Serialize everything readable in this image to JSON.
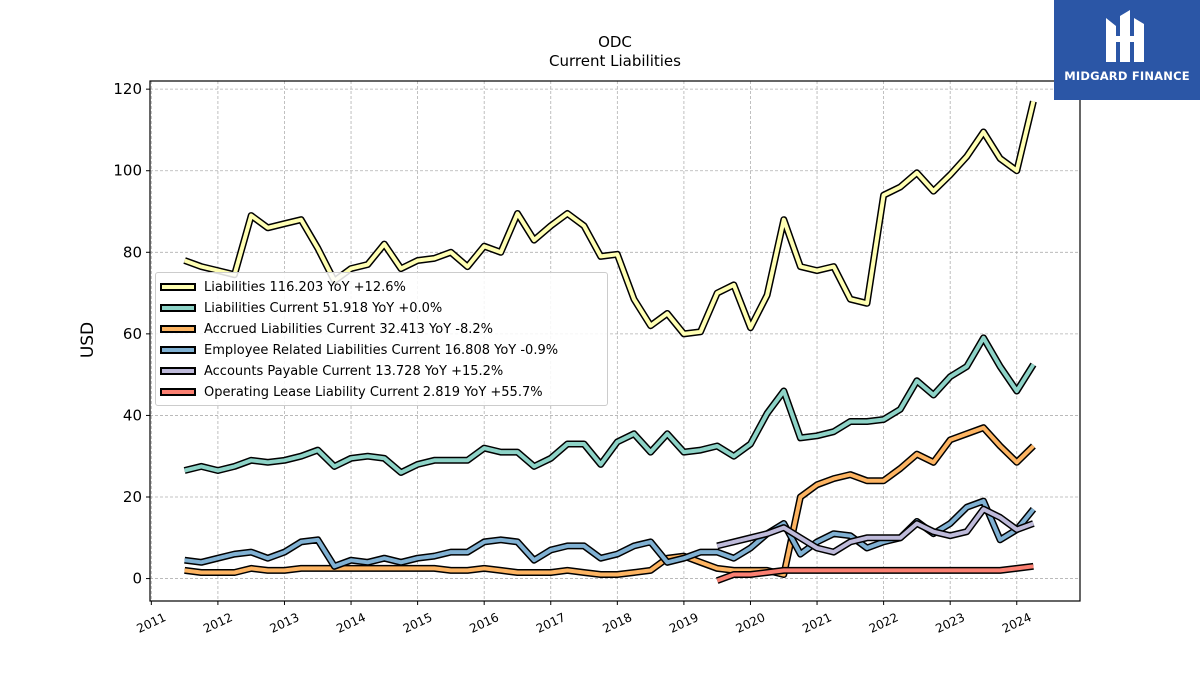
{
  "logo": {
    "text": "MIDGARD FINANCE"
  },
  "chart_data": {
    "type": "line",
    "title": "ODC",
    "subtitle": "Current  Liabilities",
    "ylabel": "USD",
    "xlim": [
      2010.98,
      2024.95
    ],
    "ylim": [
      -5.5,
      122
    ],
    "yticks": [
      0,
      20,
      40,
      60,
      80,
      100,
      120
    ],
    "xticks": [
      "2011",
      "2012",
      "2013",
      "2014",
      "2015",
      "2016",
      "2017",
      "2018",
      "2019",
      "2020",
      "2021",
      "2022",
      "2023",
      "2024"
    ],
    "grid": true,
    "legend_position": "center-left",
    "series": [
      {
        "name": "Liabilities",
        "legend": "Liabilities  116.203 YoY +12.6%",
        "color": "#ffffb3",
        "x": [
          2011.5,
          2011.75,
          2012.0,
          2012.25,
          2012.5,
          2012.75,
          2013.0,
          2013.25,
          2013.5,
          2013.75,
          2014.0,
          2014.25,
          2014.5,
          2014.75,
          2015.0,
          2015.25,
          2015.5,
          2015.75,
          2016.0,
          2016.25,
          2016.5,
          2016.75,
          2017.0,
          2017.25,
          2017.5,
          2017.75,
          2018.0,
          2018.25,
          2018.5,
          2018.75,
          2019.0,
          2019.25,
          2019.5,
          2019.75,
          2020.0,
          2020.25,
          2020.5,
          2020.75,
          2021.0,
          2021.25,
          2021.5,
          2021.75,
          2022.0,
          2022.25,
          2022.5,
          2022.75,
          2023.0,
          2023.25,
          2023.5,
          2023.75,
          2024.0,
          2024.25
        ],
        "y": [
          78,
          76.5,
          75.5,
          74.5,
          89,
          86,
          87,
          88,
          81,
          73,
          76,
          77,
          82,
          76,
          78,
          78.5,
          80,
          76.5,
          81.5,
          80,
          89.5,
          83,
          86.5,
          89.5,
          86.5,
          79,
          79.5,
          68.5,
          62,
          65,
          60,
          60.5,
          70,
          72,
          61.5,
          69.5,
          88,
          76.5,
          75.5,
          76.5,
          68.5,
          67.5,
          94,
          96,
          99.5,
          95,
          99,
          103.5,
          109.5,
          103,
          100,
          117
        ]
      },
      {
        "name": "Liabilities Current",
        "legend": "Liabilities Current  51.918 YoY +0.0%",
        "color": "#8dd3c7",
        "x": [
          2011.5,
          2011.75,
          2012.0,
          2012.25,
          2012.5,
          2012.75,
          2013.0,
          2013.25,
          2013.5,
          2013.75,
          2014.0,
          2014.25,
          2014.5,
          2014.75,
          2015.0,
          2015.25,
          2015.5,
          2015.75,
          2016.0,
          2016.25,
          2016.5,
          2016.75,
          2017.0,
          2017.25,
          2017.5,
          2017.75,
          2018.0,
          2018.25,
          2018.5,
          2018.75,
          2019.0,
          2019.25,
          2019.5,
          2019.75,
          2020.0,
          2020.25,
          2020.5,
          2020.75,
          2021.0,
          2021.25,
          2021.5,
          2021.75,
          2022.0,
          2022.25,
          2022.5,
          2022.75,
          2023.0,
          2023.25,
          2023.5,
          2023.75,
          2024.0,
          2024.25
        ],
        "y": [
          26.5,
          27.5,
          26.5,
          27.5,
          29,
          28.5,
          29,
          30,
          31.5,
          27.5,
          29.5,
          30,
          29.5,
          26,
          28,
          29,
          29,
          29,
          32,
          31,
          31,
          27.5,
          29.5,
          33,
          33,
          28,
          33.5,
          35.5,
          31,
          35.5,
          31,
          31.5,
          32.5,
          30,
          33,
          40.5,
          46,
          34.5,
          35,
          36,
          38.5,
          38.5,
          39,
          41.5,
          48.5,
          45,
          49.5,
          52,
          59,
          52,
          46,
          52.5
        ]
      },
      {
        "name": "Accrued Liabilities Current",
        "legend": "Accrued Liabilities Current  32.413 YoY -8.2%",
        "color": "#fdb462",
        "x": [
          2011.5,
          2011.75,
          2012.0,
          2012.25,
          2012.5,
          2012.75,
          2013.0,
          2013.25,
          2013.5,
          2013.75,
          2014.0,
          2014.25,
          2014.5,
          2014.75,
          2015.0,
          2015.25,
          2015.5,
          2015.75,
          2016.0,
          2016.25,
          2016.5,
          2016.75,
          2017.0,
          2017.25,
          2017.5,
          2017.75,
          2018.0,
          2018.25,
          2018.5,
          2018.75,
          2019.0,
          2019.25,
          2019.5,
          2019.75,
          2020.0,
          2020.25,
          2020.5,
          2020.75,
          2021.0,
          2021.25,
          2021.5,
          2021.75,
          2022.0,
          2022.25,
          2022.5,
          2022.75,
          2023.0,
          2023.25,
          2023.5,
          2023.75,
          2024.0,
          2024.25
        ],
        "y": [
          2,
          1.5,
          1.5,
          1.5,
          2.5,
          2,
          2,
          2.5,
          2.5,
          2.5,
          2.5,
          2.5,
          2.5,
          2.5,
          2.5,
          2.5,
          2,
          2,
          2.5,
          2,
          1.5,
          1.5,
          1.5,
          2,
          1.5,
          1,
          1,
          1.5,
          2,
          5,
          5.5,
          4,
          2.5,
          2,
          2,
          2,
          1,
          20,
          23,
          24.5,
          25.5,
          24,
          24,
          27,
          30.5,
          28.5,
          34,
          35.5,
          37,
          32.5,
          28.5,
          32.5
        ]
      },
      {
        "name": "Employee Related Liabilities Current",
        "legend": "Employee Related Liabilities Current  16.808 YoY -0.9%",
        "color": "#80b1d3",
        "x": [
          2011.5,
          2011.75,
          2012.0,
          2012.25,
          2012.5,
          2012.75,
          2013.0,
          2013.25,
          2013.5,
          2013.75,
          2014.0,
          2014.25,
          2014.5,
          2014.75,
          2015.0,
          2015.25,
          2015.5,
          2015.75,
          2016.0,
          2016.25,
          2016.5,
          2016.75,
          2017.0,
          2017.25,
          2017.5,
          2017.75,
          2018.0,
          2018.25,
          2018.5,
          2018.75,
          2019.0,
          2019.25,
          2019.5,
          2019.75,
          2020.0,
          2020.25,
          2020.5,
          2020.75,
          2021.0,
          2021.25,
          2021.5,
          2021.75,
          2022.0,
          2022.25,
          2022.5,
          2022.75,
          2023.0,
          2023.25,
          2023.5,
          2023.75,
          2024.0,
          2024.25
        ],
        "y": [
          4.5,
          4,
          5,
          6,
          6.5,
          5,
          6.5,
          9,
          9.5,
          3,
          4.5,
          4,
          5,
          4,
          5,
          5.5,
          6.5,
          6.5,
          9,
          9.5,
          9,
          4.5,
          7,
          8,
          8,
          5,
          6,
          8,
          9,
          4,
          5,
          6.5,
          6.5,
          5,
          7.5,
          11,
          13.5,
          6,
          9,
          11,
          10.5,
          7.5,
          9,
          10,
          14,
          11,
          13.5,
          17.5,
          19,
          9.5,
          12,
          17
        ]
      },
      {
        "name": "Accounts Payable Current",
        "legend": "Accounts Payable Current  13.728 YoY +15.2%",
        "color": "#bebada",
        "x": [
          2019.5,
          2019.75,
          2020.0,
          2020.25,
          2020.5,
          2020.75,
          2021.0,
          2021.25,
          2021.5,
          2021.75,
          2022.0,
          2022.25,
          2022.5,
          2022.75,
          2023.0,
          2023.25,
          2023.5,
          2023.75,
          2024.0,
          2024.25
        ],
        "y": [
          8,
          9,
          10,
          11,
          12.5,
          10,
          7.5,
          6.5,
          9,
          10,
          10,
          10,
          13.5,
          11.5,
          10.5,
          11.5,
          17,
          15,
          12,
          13.5
        ]
      },
      {
        "name": "Operating Lease Liability Current",
        "legend": "Operating Lease Liability Current  2.819 YoY +55.7%",
        "color": "#fb8072",
        "x": [
          2019.5,
          2019.75,
          2020.0,
          2020.25,
          2020.5,
          2020.75,
          2021.0,
          2021.25,
          2021.5,
          2021.75,
          2022.0,
          2022.25,
          2022.5,
          2022.75,
          2023.0,
          2023.25,
          2023.5,
          2023.75,
          2024.0,
          2024.25
        ],
        "y": [
          -0.5,
          1,
          1,
          1.5,
          2,
          2,
          2,
          2,
          2,
          2,
          2,
          2,
          2,
          2,
          2,
          2,
          2,
          2,
          2.5,
          3
        ]
      }
    ]
  }
}
